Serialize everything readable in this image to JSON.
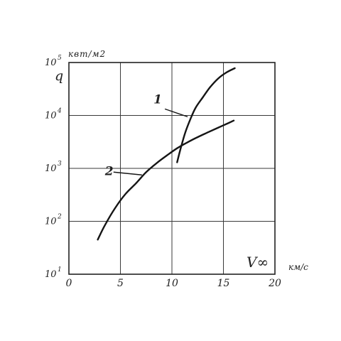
{
  "chart_data": {
    "type": "line",
    "title": "",
    "xlabel": "V∞",
    "x_unit": "км/с",
    "ylabel": "q",
    "y_unit": "квт/м2",
    "y_scale": "log",
    "grid": true,
    "xlim": [
      0,
      20
    ],
    "ylim": [
      10,
      100000
    ],
    "x_ticks": [
      0,
      5,
      10,
      15,
      20
    ],
    "x_tick_labels": [
      "0",
      "5",
      "10",
      "15",
      "20"
    ],
    "y_ticks": [
      10,
      100,
      1000,
      10000,
      100000
    ],
    "y_tick_labels": [
      {
        "base": "10",
        "exp": "1"
      },
      {
        "base": "10",
        "exp": "2"
      },
      {
        "base": "10",
        "exp": "3"
      },
      {
        "base": "10",
        "exp": "4"
      },
      {
        "base": "10",
        "exp": "5"
      }
    ],
    "series": [
      {
        "name": "1",
        "x": [
          10.5,
          10.9,
          11.3,
          11.8,
          12.3,
          13.0,
          13.7,
          14.5,
          15.3,
          16.1
        ],
        "y": [
          1300,
          2600,
          4800,
          8600,
          14000,
          22000,
          34000,
          50000,
          65000,
          78000
        ]
      },
      {
        "name": "2",
        "x": [
          2.8,
          3.5,
          4.5,
          5.5,
          6.5,
          7.5,
          8.5,
          9.5,
          10.5,
          11.5,
          12.5,
          13.5,
          14.5,
          15.5,
          16.0
        ],
        "y": [
          45,
          85,
          180,
          330,
          520,
          850,
          1250,
          1750,
          2400,
          3100,
          3900,
          4800,
          5900,
          7200,
          8000
        ]
      }
    ]
  }
}
